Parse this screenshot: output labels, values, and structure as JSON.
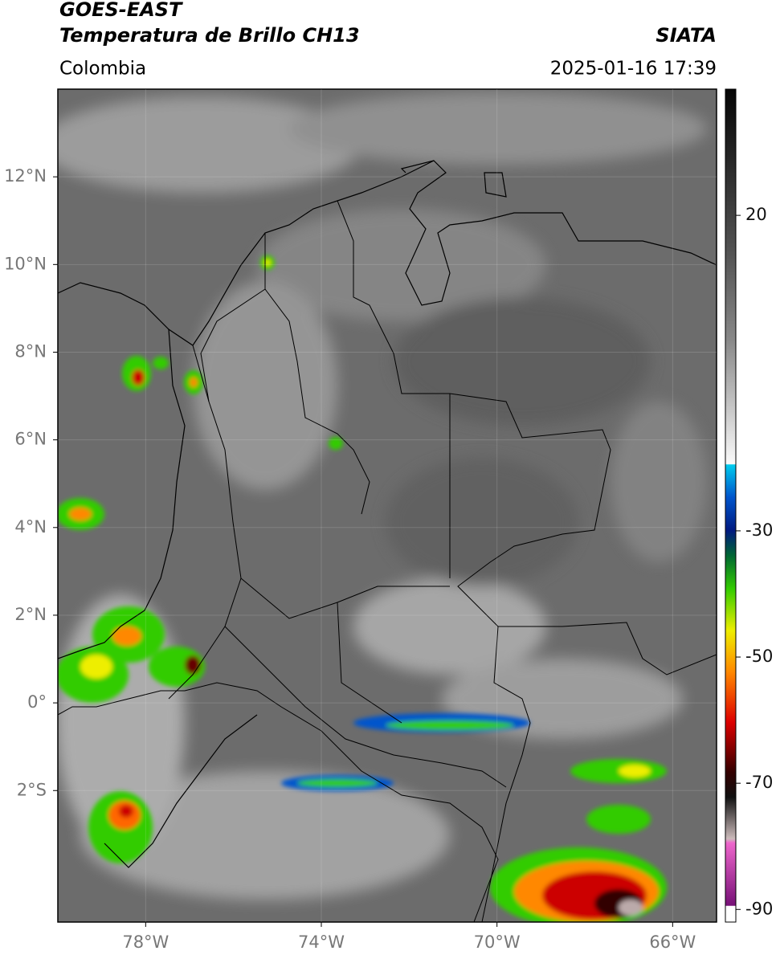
{
  "header": {
    "title": "GOES-EAST",
    "subtitle": "Temperatura de Brillo CH13",
    "region": "Colombia",
    "source": "SIATA",
    "timestamp": "2025-01-16 17:39"
  },
  "map": {
    "xlim": [
      -80,
      -65
    ],
    "ylim": [
      -5,
      14
    ],
    "xticks": [
      {
        "value": -78,
        "label": "78°W"
      },
      {
        "value": -74,
        "label": "74°W"
      },
      {
        "value": -70,
        "label": "70°W"
      },
      {
        "value": -66,
        "label": "66°W"
      }
    ],
    "yticks": [
      {
        "value": 12,
        "label": "12°N"
      },
      {
        "value": 10,
        "label": "10°N"
      },
      {
        "value": 8,
        "label": "8°N"
      },
      {
        "value": 6,
        "label": "6°N"
      },
      {
        "value": 4,
        "label": "4°N"
      },
      {
        "value": 2,
        "label": "2°N"
      },
      {
        "value": 0,
        "label": "0°"
      },
      {
        "value": -2,
        "label": "2°S"
      }
    ],
    "grid": true
  },
  "colorbar": {
    "lim": [
      -92,
      40
    ],
    "ticks": [
      20,
      -30,
      -50,
      -70,
      -90
    ]
  }
}
